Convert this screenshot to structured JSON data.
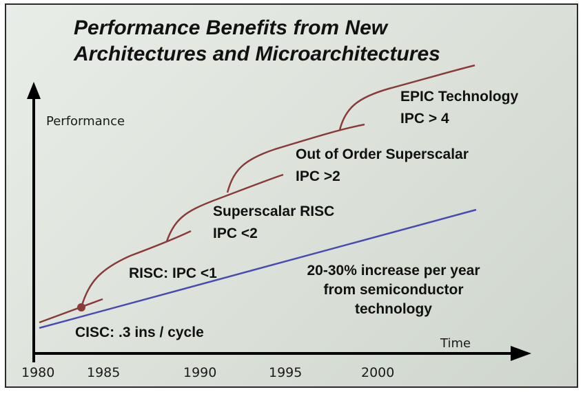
{
  "title": {
    "line1": "Performance Benefits from New",
    "line2": "Architectures and Microarchitectures"
  },
  "axes": {
    "y_label": "Performance",
    "x_label": "Time",
    "ticks": [
      "1980",
      "1985",
      "1990",
      "1995",
      "2000"
    ]
  },
  "labels": {
    "cisc": "CISC: .3 ins / cycle",
    "risc": "RISC: IPC <1",
    "superscalar_line1": "Superscalar RISC",
    "superscalar_line2": "IPC <2",
    "ooo_line1": "Out of Order Superscalar",
    "ooo_line2": "IPC >2",
    "epic_line1": "EPIC Technology",
    "epic_line2": "IPC > 4",
    "trend_line1": "20-30% increase per year",
    "trend_line2": "from semiconductor",
    "trend_line3": "technology"
  },
  "colors": {
    "curve": "#8b3a3a",
    "trend": "#4a4ab0",
    "axis": "#000000"
  }
}
